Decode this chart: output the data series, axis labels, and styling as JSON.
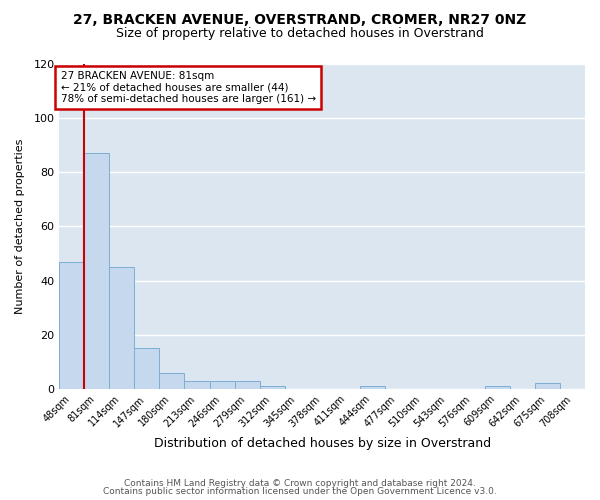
{
  "title": "27, BRACKEN AVENUE, OVERSTRAND, CROMER, NR27 0NZ",
  "subtitle": "Size of property relative to detached houses in Overstrand",
  "xlabel": "Distribution of detached houses by size in Overstrand",
  "ylabel": "Number of detached properties",
  "bar_color": "#c5d8ee",
  "bar_edge_color": "#7bafd4",
  "plot_bg_color": "#dce6f0",
  "figure_bg_color": "#ffffff",
  "grid_color": "#ffffff",
  "bin_labels": [
    "48sqm",
    "81sqm",
    "114sqm",
    "147sqm",
    "180sqm",
    "213sqm",
    "246sqm",
    "279sqm",
    "312sqm",
    "345sqm",
    "378sqm",
    "411sqm",
    "444sqm",
    "477sqm",
    "510sqm",
    "543sqm",
    "576sqm",
    "609sqm",
    "642sqm",
    "675sqm",
    "708sqm"
  ],
  "bar_heights": [
    47,
    87,
    45,
    15,
    6,
    3,
    3,
    3,
    1,
    0,
    0,
    0,
    1,
    0,
    0,
    0,
    0,
    1,
    0,
    2,
    0
  ],
  "ylim": [
    0,
    120
  ],
  "yticks": [
    0,
    20,
    40,
    60,
    80,
    100,
    120
  ],
  "property_line_x": 1.0,
  "property_label": "27 BRACKEN AVENUE: 81sqm",
  "annotation_line1": "← 21% of detached houses are smaller (44)",
  "annotation_line2": "78% of semi-detached houses are larger (161) →",
  "annotation_box_color": "#ffffff",
  "annotation_border_color": "#cc0000",
  "red_line_color": "#cc0000",
  "footer_line1": "Contains HM Land Registry data © Crown copyright and database right 2024.",
  "footer_line2": "Contains public sector information licensed under the Open Government Licence v3.0."
}
